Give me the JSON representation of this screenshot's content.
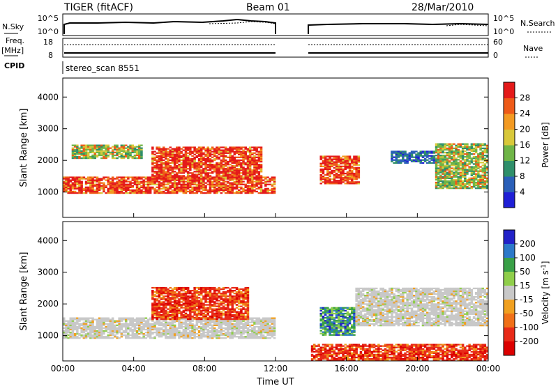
{
  "header": {
    "title": "TIGER (fitACF)",
    "beam": "Beam 01",
    "date": "28/Mar/2010"
  },
  "strip_labels": {
    "nsky": "N.Sky",
    "nsky_ticks": [
      "10^5",
      "10^0"
    ],
    "nsearch": "N.Search",
    "nsearch_ticks": [
      "10^5",
      "10^0"
    ],
    "freq_line1": "Freq.",
    "freq_line2": "[MHz]",
    "freq_ticks": [
      "18",
      "8"
    ],
    "nave": "Nave",
    "nave_ticks": [
      "60",
      "0"
    ],
    "cpid": "CPID",
    "cpid_value": "stereo_scan 8551"
  },
  "chart_data": [
    {
      "type": "heatmap",
      "panel": "power",
      "ylabel": "Slant Range [km]",
      "xlabel": "",
      "y_ticks": [
        "1000",
        "2000",
        "3000",
        "4000"
      ],
      "ylim": [
        200,
        4600
      ],
      "colorbar": {
        "label": "Power [dB]",
        "ticks": [
          "4",
          "8",
          "12",
          "16",
          "20",
          "24",
          "28"
        ],
        "range": [
          0,
          32
        ],
        "colors": [
          "#1f1fd6",
          "#2a5fb8",
          "#2f8f6a",
          "#6fb547",
          "#d8c83a",
          "#f39a22",
          "#ee5a18",
          "#e41a1a"
        ]
      },
      "regions": [
        {
          "t0": 0.0,
          "t1": 12.0,
          "r0": 950,
          "r1": 1450,
          "value": "high"
        },
        {
          "t0": 5.0,
          "t1": 11.2,
          "r0": 1400,
          "r1": 2400,
          "value": "high"
        },
        {
          "t0": 0.5,
          "t1": 4.5,
          "r0": 2050,
          "r1": 2500,
          "value": "mid"
        },
        {
          "t0": 14.5,
          "t1": 16.7,
          "r0": 1250,
          "r1": 2150,
          "value": "high"
        },
        {
          "t0": 18.5,
          "t1": 21.0,
          "r0": 1900,
          "r1": 2300,
          "value": "low"
        },
        {
          "t0": 21.0,
          "t1": 24.0,
          "r0": 1100,
          "r1": 2500,
          "value": "mid"
        }
      ]
    },
    {
      "type": "heatmap",
      "panel": "velocity",
      "ylabel": "Slant Range [km]",
      "xlabel": "Time UT",
      "x_ticks": [
        "00:00",
        "04:00",
        "08:00",
        "12:00",
        "16:00",
        "20:00",
        "00:00"
      ],
      "x_hours": [
        0,
        4,
        8,
        12,
        16,
        20,
        24
      ],
      "y_ticks": [
        "1000",
        "2000",
        "3000",
        "4000"
      ],
      "ylim": [
        200,
        4600
      ],
      "colorbar": {
        "label": "Velocity [m s",
        "label_sup": "-1",
        "label_tail": "]",
        "ticks": [
          "200",
          "100",
          "50",
          "15",
          "-15",
          "-50",
          "-100",
          "-200"
        ],
        "colors": [
          "#2222c8",
          "#2c79c9",
          "#39a047",
          "#8fce4a",
          "#c8c8c8",
          "#f0a020",
          "#f07018",
          "#e82a18",
          "#dc0000"
        ]
      },
      "regions": [
        {
          "t0": 0.0,
          "t1": 12.0,
          "r0": 900,
          "r1": 1550,
          "value": "ground"
        },
        {
          "t0": 5.0,
          "t1": 10.5,
          "r0": 1500,
          "r1": 2500,
          "value": "negative"
        },
        {
          "t0": 14.5,
          "t1": 16.5,
          "r0": 1000,
          "r1": 1900,
          "value": "positive"
        },
        {
          "t0": 14.0,
          "t1": 24.0,
          "r0": 200,
          "r1": 700,
          "value": "negative"
        },
        {
          "t0": 16.5,
          "t1": 24.0,
          "r0": 1300,
          "r1": 2500,
          "value": "ground"
        }
      ]
    }
  ]
}
